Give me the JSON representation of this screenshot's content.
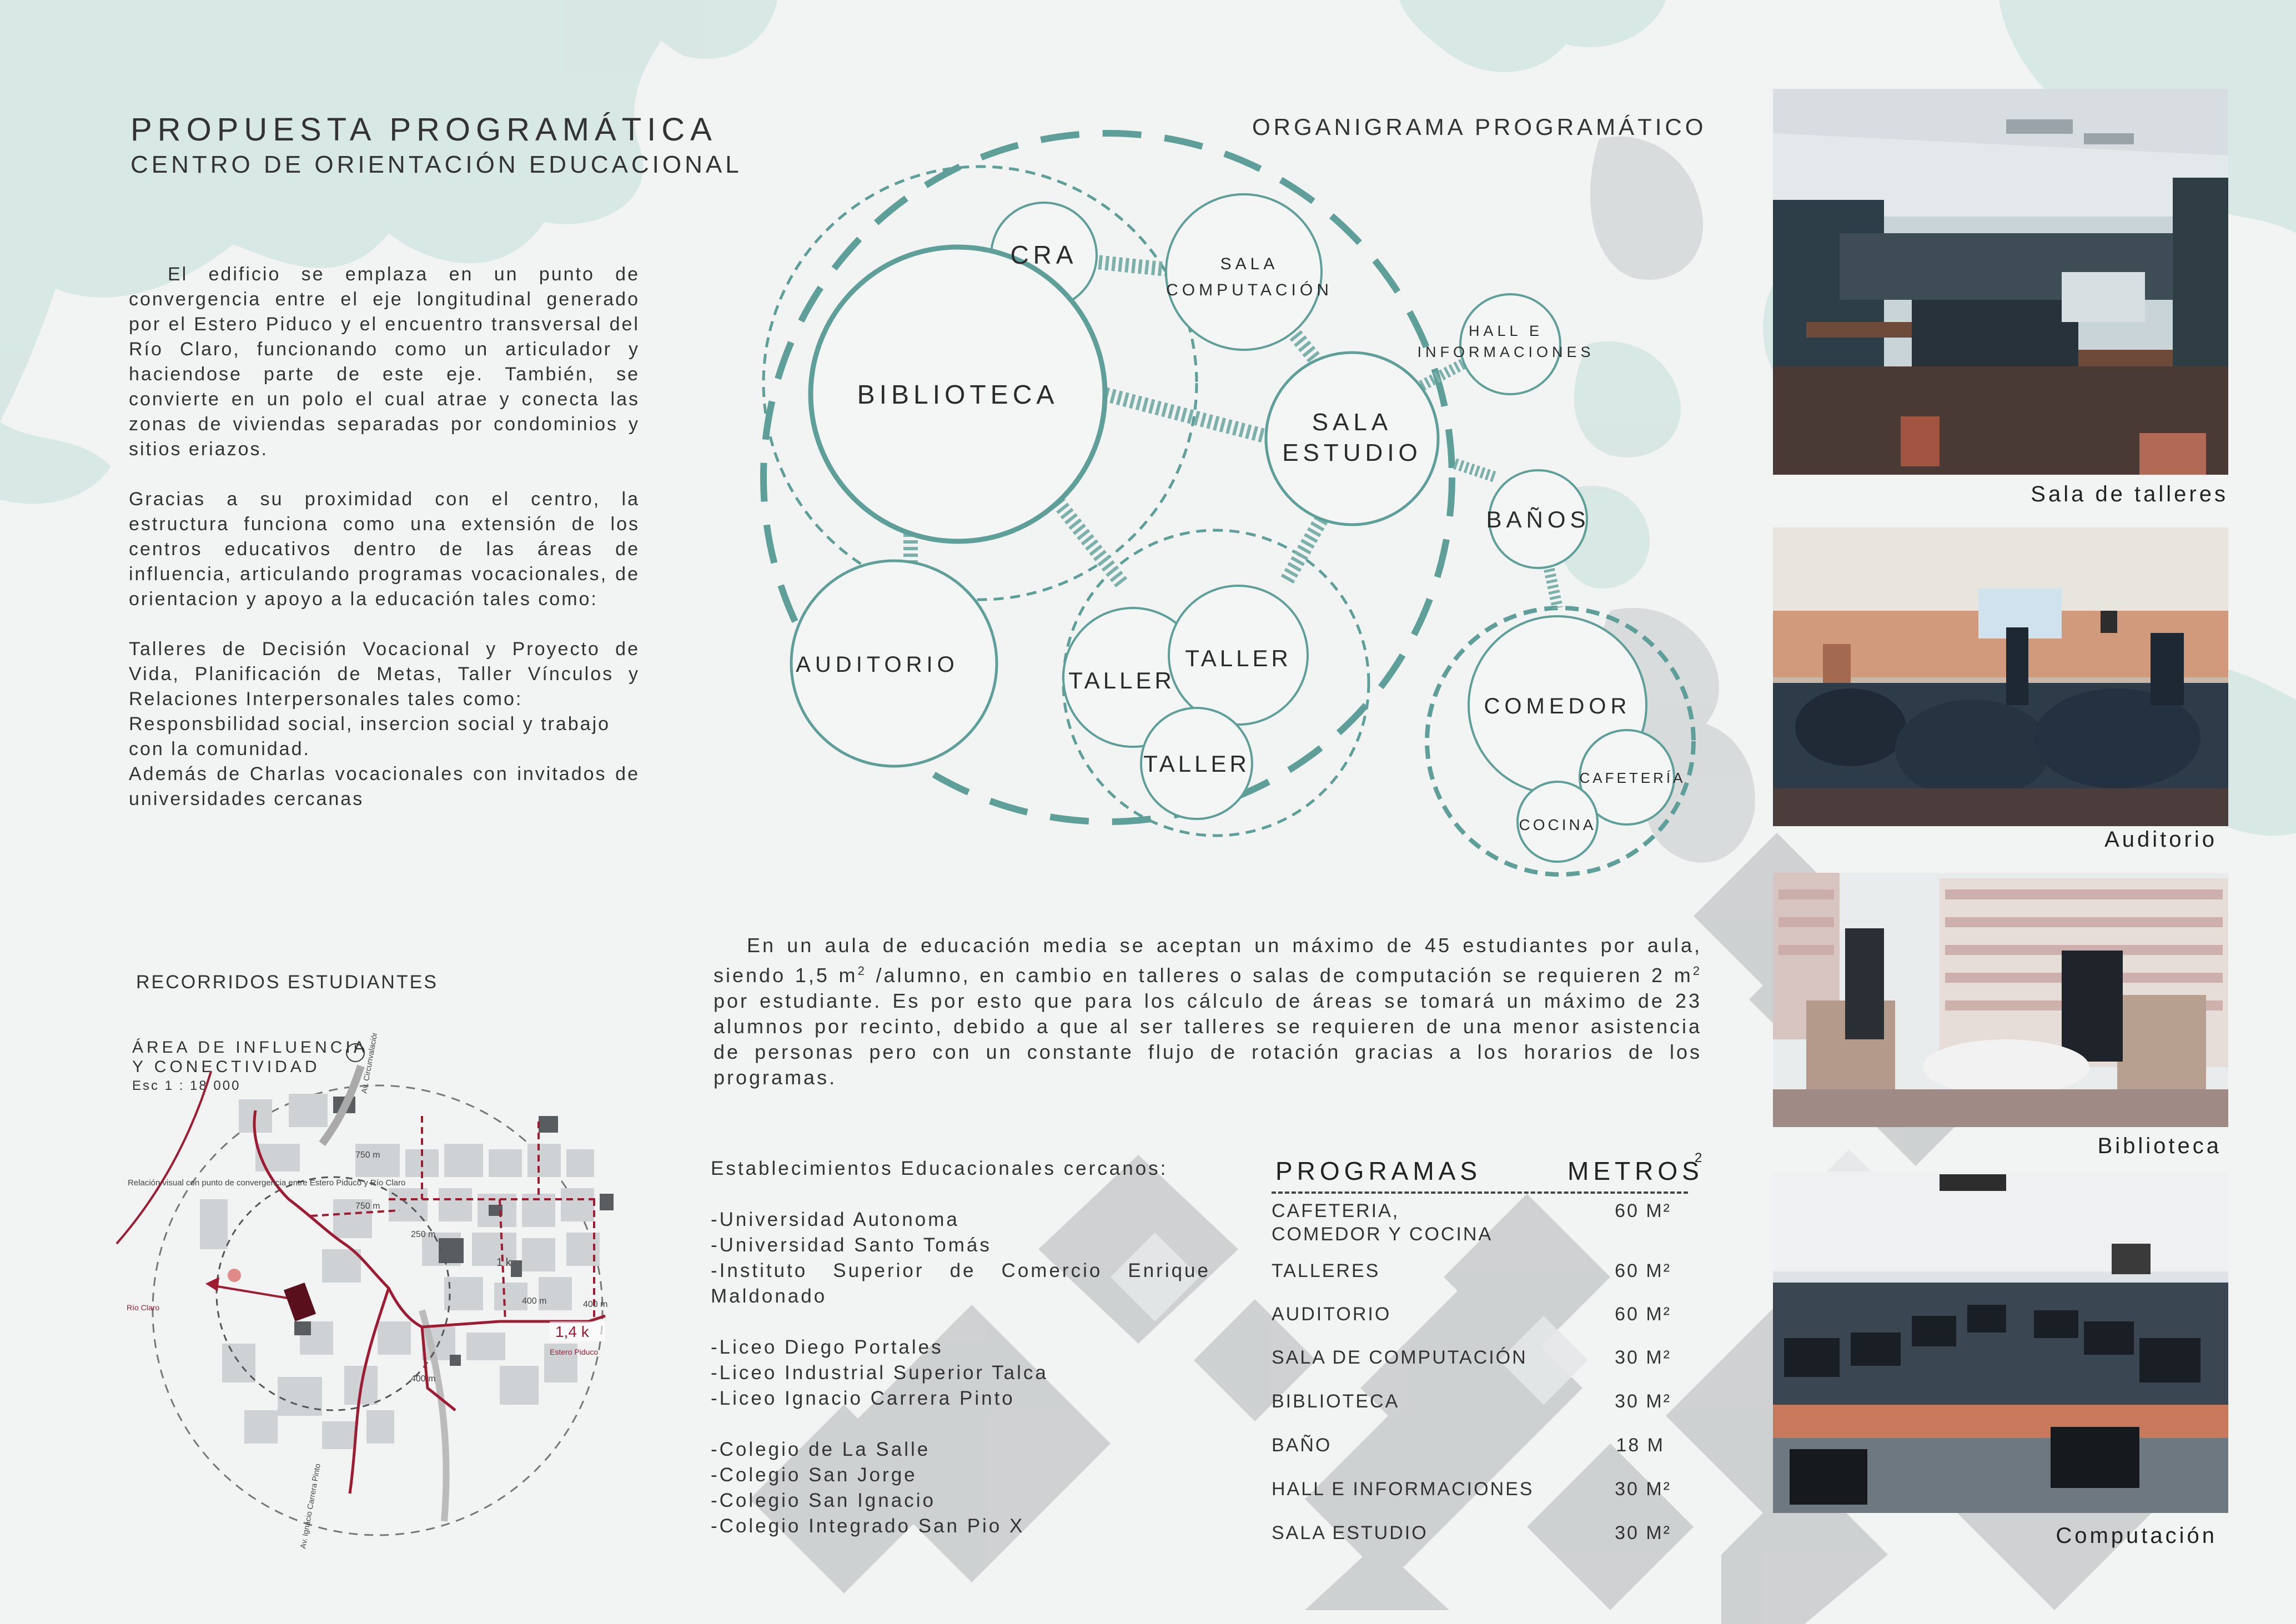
{
  "header": {
    "title": "PROPUESTA PROGRAMÁTICA",
    "subtitle": "CENTRO DE ORIENTACIÓN EDUCACIONAL"
  },
  "intro": {
    "p1": "El edificio se emplaza en un punto de convergencia entre el eje longitudinal generado por el Estero Piduco y el encuentro transversal del Río Claro, funcionando como un articulador y haciendose parte de este eje. También, se convierte en un polo el cual atrae y conecta las zonas de viviendas separadas por condominios y sitios eriazos.",
    "p2": "Gracias a su proximidad con el centro, la estructura funciona como una extensión de los centros educativos dentro de las áreas de influencia, articulando programas vocacionales, de orientacion y apoyo a la educación tales como:",
    "p3": "Talleres de Decisión Vocacional y Proyecto de Vida, Planificación de Metas, Taller Vínculos y Relaciones Interpersonales tales como:",
    "p4": "Responsbilidad social, insercion social y trabajo con la comunidad.",
    "p5": "Además de Charlas vocacionales con invitados de universidades cercanas"
  },
  "map": {
    "section_title": "RECORRIDOS ESTUDIANTES",
    "area_title_1": "ÁREA DE INFLUENCIA",
    "area_title_2": "Y CONECTIVIDAD",
    "scale": "Esc 1 : 18 000",
    "label_visual": "Relación visual con punto de convergencia entre Estero Piduco y Río Claro",
    "label_rio": "Río Claro",
    "label_estero": "Estero Piduco",
    "label_avenida": "Av. Circunvalación Norte",
    "label_carrera": "Av. Ignacio Carrera Pinto",
    "dist_750a": "750 m",
    "dist_750b": "750 m",
    "dist_250": "250 m",
    "dist_400a": "400 m",
    "dist_400b": "400 m",
    "dist_400c": "400 m",
    "dist_1k": "1 k",
    "dist_14k": "1,4 k"
  },
  "organigrama": {
    "title": "ORGANIGRAMA PROGRAMÁTICO",
    "nodes": {
      "cra": "CRA",
      "sala_comp_1": "SALA",
      "sala_comp_2": "COMPUTACIÓN",
      "biblioteca": "BIBLIOTECA",
      "hall_1": "HALL E",
      "hall_2": "INFORMACIONES",
      "sala_est_1": "SALA",
      "sala_est_2": "ESTUDIO",
      "banos": "BAÑOS",
      "auditorio": "AUDITORIO",
      "taller_a": "TALLER",
      "taller_b": "TALLER",
      "taller_c": "TALLER",
      "comedor": "COMEDOR",
      "cafeteria": "CAFETERÍA",
      "cocina": "COCINA"
    }
  },
  "capacity": {
    "text_1": "En un aula de educación media se aceptan un máximo de 45 estudiantes por aula, siendo 1,5 m",
    "sup_1": "2",
    "text_2": " /alumno, en cambio en talleres o salas de computación se requieren 2 m",
    "sup_2": "2",
    "text_3": " por estudiante. Es por esto que para los cálculo de áreas se tomará un máximo de 23 alumnos por recinto, debido a que al ser talleres se requieren de una menor asistencia de personas pero con un constante flujo de rotación gracias a los horarios de los programas."
  },
  "establecimientos": {
    "title": "Establecimientos Educacionales cercanos:",
    "g1": [
      "-Universidad Autonoma",
      "-Universidad Santo Tomás",
      "-Instituto Superior de Comercio Enrique Maldonado"
    ],
    "g2": [
      "-Liceo Diego Portales",
      "-Liceo Industrial Superior Talca",
      "-Liceo Ignacio Carrera Pinto"
    ],
    "g3": [
      "-Colegio de La Salle",
      "-Colegio San Jorge",
      "-Colegio San Ignacio",
      "-Colegio Integrado San Pio X"
    ]
  },
  "programas": {
    "col_prog": "PROGRAMAS",
    "col_metros": "METROS",
    "col_metros_sup": "2",
    "rows": [
      {
        "name_1": "CAFETERIA,",
        "name_2": "COMEDOR Y COCINA",
        "value": "60 M²"
      },
      {
        "name_1": "TALLERES",
        "value": "60 M²"
      },
      {
        "name_1": "AUDITORIO",
        "value": "60 M²"
      },
      {
        "name_1": "SALA DE COMPUTACIÓN",
        "value": "30 M²"
      },
      {
        "name_1": "BIBLIOTECA",
        "value": "30 M²"
      },
      {
        "name_1": "BAÑO",
        "value": "18 M"
      },
      {
        "name_1": "HALL E INFORMACIONES",
        "value": "30 M²"
      },
      {
        "name_1": "SALA ESTUDIO",
        "value": "30 M²"
      }
    ]
  },
  "photos": {
    "p1": "Sala de talleres",
    "p2": "Auditorio",
    "p3": "Biblioteca",
    "p4": "Computación"
  },
  "colors": {
    "teal": "#5e9f99",
    "teal_dark": "#3f8a82",
    "red": "#9e1b32",
    "camo_light": "#cfe3df",
    "camo_grey": "#b9bdbf"
  }
}
